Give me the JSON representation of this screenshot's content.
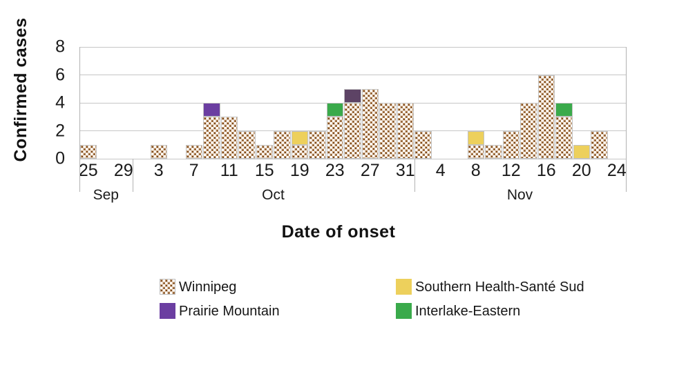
{
  "chart_data": {
    "type": "bar",
    "stacked": true,
    "title": "",
    "xlabel": "Date of onset",
    "ylabel": "Confirmed cases",
    "ylim": [
      0,
      8
    ],
    "yticks": [
      0,
      2,
      4,
      6,
      8
    ],
    "grid": "horizontal",
    "bin_size_days": 2,
    "categories": [
      "Sep 25",
      "Sep 27",
      "Sep 29",
      "Oct 1",
      "Oct 3",
      "Oct 5",
      "Oct 7",
      "Oct 9",
      "Oct 11",
      "Oct 13",
      "Oct 15",
      "Oct 17",
      "Oct 19",
      "Oct 21",
      "Oct 23",
      "Oct 25",
      "Oct 27",
      "Oct 29",
      "Oct 31",
      "Nov 2",
      "Nov 4",
      "Nov 6",
      "Nov 8",
      "Nov 10",
      "Nov 12",
      "Nov 14",
      "Nov 16",
      "Nov 18",
      "Nov 20",
      "Nov 22",
      "Nov 24"
    ],
    "x_axis_tick_labels": [
      "25",
      "29",
      "3",
      "7",
      "11",
      "15",
      "19",
      "23",
      "27",
      "31",
      "4",
      "8",
      "12",
      "16",
      "20",
      "24"
    ],
    "months": [
      {
        "label": "Sep",
        "bins": 3
      },
      {
        "label": "Oct",
        "bins": 16
      },
      {
        "label": "Nov",
        "bins": 12
      }
    ],
    "series": [
      {
        "name": "Winnipeg",
        "style": "dotted-pattern",
        "pattern_colors": {
          "background": "#ffffff",
          "dot": "#7a4a20",
          "halo": "#c49a6e"
        },
        "values": [
          1,
          0,
          0,
          0,
          1,
          0,
          1,
          3,
          3,
          2,
          1,
          2,
          1,
          2,
          3,
          4,
          5,
          4,
          4,
          2,
          0,
          0,
          1,
          1,
          2,
          4,
          6,
          3,
          0,
          2,
          0
        ]
      },
      {
        "name": "Prairie Mountain",
        "color": "#6b3ea1",
        "values": [
          0,
          0,
          0,
          0,
          0,
          0,
          0,
          1,
          0,
          0,
          0,
          0,
          0,
          0,
          0,
          1,
          0,
          0,
          0,
          0,
          0,
          0,
          0,
          0,
          0,
          0,
          0,
          0,
          0,
          0,
          0
        ]
      },
      {
        "name": "Southern Health-Santé Sud",
        "color": "#edd05c",
        "values": [
          0,
          0,
          0,
          0,
          0,
          0,
          0,
          0,
          0,
          0,
          0,
          0,
          1,
          0,
          0,
          0,
          0,
          0,
          0,
          0,
          0,
          0,
          1,
          0,
          0,
          0,
          0,
          0,
          1,
          0,
          0
        ]
      },
      {
        "name": "Interlake-Eastern",
        "color": "#3aaa4b",
        "values": [
          0,
          0,
          0,
          0,
          0,
          0,
          0,
          0,
          0,
          0,
          0,
          0,
          0,
          0,
          1,
          0,
          0,
          0,
          0,
          0,
          0,
          0,
          0,
          0,
          0,
          0,
          0,
          1,
          0,
          0,
          0
        ]
      }
    ],
    "segment_color_overrides": [
      {
        "series": "Prairie Mountain",
        "bin_index": 15,
        "color": "#5d4365"
      }
    ],
    "legend_position": "bottom"
  },
  "legend": {
    "items": [
      {
        "label": "Winnipeg",
        "swatch": "dotted-pattern"
      },
      {
        "label": "Prairie Mountain",
        "swatch": "#6b3ea1"
      },
      {
        "label": "Southern Health-Santé Sud",
        "swatch": "#edd05c"
      },
      {
        "label": "Interlake-Eastern",
        "swatch": "#3aaa4b"
      }
    ]
  },
  "colors": {
    "gridline": "#c6c6c6",
    "axis_line": "#b2b2b2",
    "bar_border": "#c2c2c2",
    "text": "#141414"
  }
}
